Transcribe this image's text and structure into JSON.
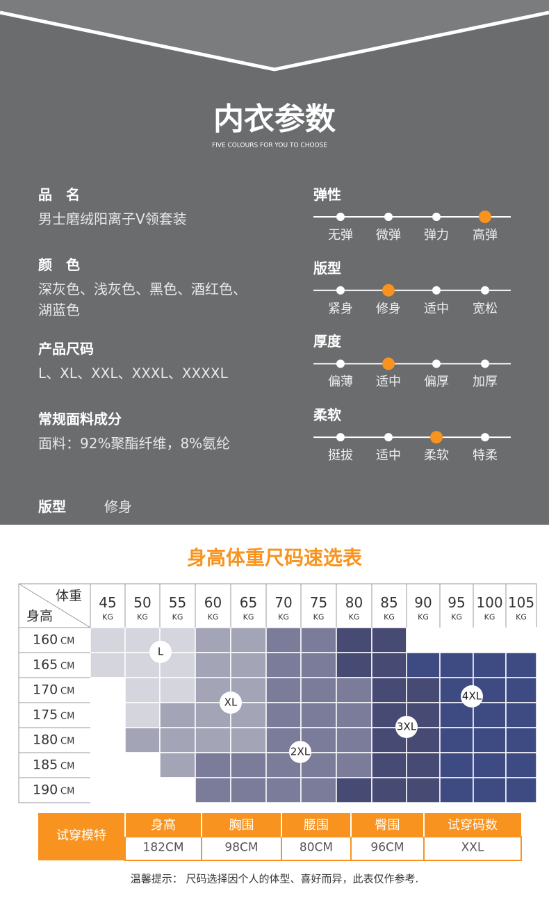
{
  "header": {
    "title": "内衣参数",
    "subtitle": "FIVE COLOURS FOR YOU TO CHOOSE"
  },
  "specs": [
    {
      "label": "品　名",
      "lines": [
        "男士磨绒阳离子V领套装"
      ]
    },
    {
      "label": "颜　色",
      "lines": [
        "深灰色、浅灰色、黑色、酒红色、",
        "湖蓝色"
      ]
    },
    {
      "label": "产品尺码",
      "lines": [
        "L、XL、XXL、XXXL、XXXXL"
      ]
    },
    {
      "label": "常规面料成分",
      "lines": [
        "面料：92%聚酯纤维，8%氨纶"
      ]
    }
  ],
  "fit": {
    "label": "版型",
    "value": "修身"
  },
  "ratings": [
    {
      "label": "弹性",
      "options": [
        "无弹",
        "微弹",
        "弹力",
        "高弹"
      ],
      "selected": 3
    },
    {
      "label": "版型",
      "options": [
        "紧身",
        "修身",
        "适中",
        "宽松"
      ],
      "selected": 1
    },
    {
      "label": "厚度",
      "options": [
        "偏薄",
        "适中",
        "偏厚",
        "加厚"
      ],
      "selected": 1
    },
    {
      "label": "柔软",
      "options": [
        "挺拔",
        "适中",
        "柔软",
        "特柔"
      ],
      "selected": 2
    }
  ],
  "size_chart": {
    "title": "身高体重尺码速选表",
    "corner": {
      "top": "体重",
      "bottom": "身高"
    },
    "weights": [
      45,
      50,
      55,
      60,
      65,
      70,
      75,
      80,
      85,
      90,
      95,
      100,
      105
    ],
    "weight_unit": "KG",
    "heights": [
      160,
      165,
      170,
      175,
      180,
      185,
      190
    ],
    "height_unit": "CM",
    "zones": [
      "L",
      "XL",
      "2XL",
      "3XL",
      "4XL"
    ]
  },
  "model": {
    "label": "试穿模特",
    "headers": [
      "身高",
      "胸围",
      "腰围",
      "臀围",
      "试穿码数"
    ],
    "values": [
      "182CM",
      "98CM",
      "80CM",
      "96CM",
      "XXL"
    ]
  },
  "note": "温馨提示： 尺码选择因个人的体型、喜好而异，此表仅作参考."
}
